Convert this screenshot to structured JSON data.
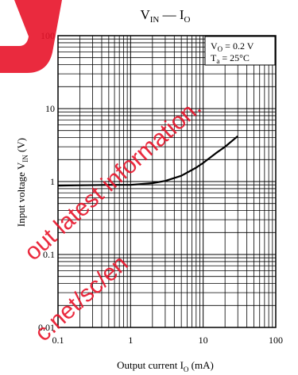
{
  "chart_data": {
    "type": "line",
    "title": {
      "main": "V",
      "main_sub": "IN",
      "sep": " — ",
      "second": "I",
      "second_sub": "O"
    },
    "xlabel": {
      "text": "Output current  I",
      "sub": "O",
      "unit": "  (mA)"
    },
    "ylabel": {
      "text": "Input voltage  V",
      "sub": "IN",
      "unit": "  (V)"
    },
    "x_scale": "log",
    "y_scale": "log",
    "xlim": [
      0.1,
      100
    ],
    "ylim": [
      0.01,
      100
    ],
    "x_ticks": [
      "0.1",
      "1",
      "10",
      "100"
    ],
    "y_ticks": [
      "0.01",
      "0.1",
      "1",
      "10",
      "100"
    ],
    "grid": true,
    "conditions": [
      {
        "text": "V",
        "sub": "O",
        "rest": " = 0.2 V"
      },
      {
        "text": "T",
        "sub": "a",
        "rest": " = 25°C"
      }
    ],
    "conditions_position": "top-right",
    "series": [
      {
        "x": [
          0.1,
          0.2,
          0.5,
          1,
          2,
          3,
          5,
          8,
          10,
          15,
          20,
          30
        ],
        "y": [
          0.88,
          0.89,
          0.9,
          0.9,
          0.95,
          1.02,
          1.2,
          1.55,
          1.8,
          2.45,
          3.0,
          4.2
        ]
      }
    ],
    "line_color": "#000000"
  },
  "watermark": {
    "color": "#e8132a",
    "lines": [
      "out latest information.",
      "c.net/sc/en"
    ]
  }
}
